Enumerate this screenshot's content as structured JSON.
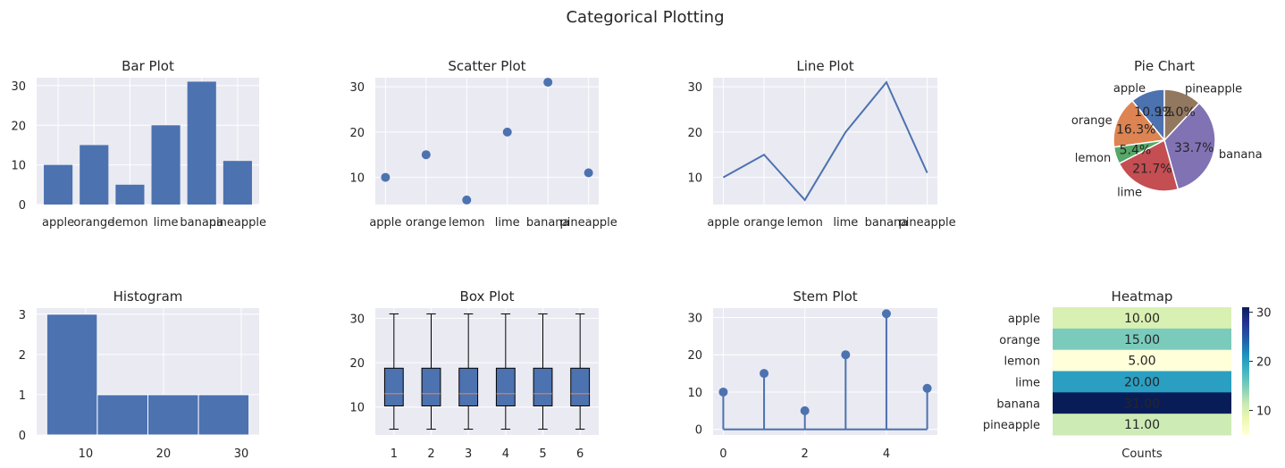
{
  "figure": {
    "suptitle": "Categorical Plotting"
  },
  "colors": {
    "axes_bg": "#eaeaf2",
    "grid": "#ffffff",
    "primary": "#4c72b0",
    "median": "#dd8452",
    "pie": [
      "#4c72b0",
      "#dd8452",
      "#55a868",
      "#c44e52",
      "#8172b3",
      "#937860"
    ],
    "heatmap_low": "#ffffd9",
    "heatmap_high": "#081d58"
  },
  "chart_data": [
    {
      "type": "bar",
      "title": "Bar Plot",
      "categories": [
        "apple",
        "orange",
        "lemon",
        "lime",
        "banana",
        "pineapple"
      ],
      "values": [
        10,
        15,
        5,
        20,
        31,
        11
      ],
      "ylim": [
        0,
        32
      ],
      "yticks": [
        0,
        10,
        20,
        30
      ],
      "grid": true
    },
    {
      "type": "scatter",
      "title": "Scatter Plot",
      "categories": [
        "apple",
        "orange",
        "lemon",
        "lime",
        "banana",
        "pineapple"
      ],
      "values": [
        10,
        15,
        5,
        20,
        31,
        11
      ],
      "ylim": [
        4,
        32
      ],
      "yticks": [
        10,
        20,
        30
      ],
      "grid": true
    },
    {
      "type": "line",
      "title": "Line Plot",
      "categories": [
        "apple",
        "orange",
        "lemon",
        "lime",
        "banana",
        "pineapple"
      ],
      "values": [
        10,
        15,
        5,
        20,
        31,
        11
      ],
      "ylim": [
        4,
        32
      ],
      "yticks": [
        10,
        20,
        30
      ],
      "grid": true
    },
    {
      "type": "pie",
      "title": "Pie Chart",
      "labels": [
        "apple",
        "orange",
        "lemon",
        "lime",
        "banana",
        "pineapple"
      ],
      "values": [
        10,
        15,
        5,
        20,
        31,
        11
      ],
      "percent_labels": [
        "10.9%",
        "16.3%",
        "5.4%",
        "21.7%",
        "33.7%",
        "12.0%"
      ]
    },
    {
      "type": "histogram",
      "title": "Histogram",
      "bin_edges": [
        5,
        11.5,
        18,
        24.5,
        31
      ],
      "counts": [
        3,
        1,
        1,
        1
      ],
      "xlim": [
        3.7,
        32.3
      ],
      "xticks": [
        10,
        20,
        30
      ],
      "ylim": [
        0,
        3.15
      ],
      "yticks": [
        0,
        1,
        2,
        3
      ],
      "grid": true
    },
    {
      "type": "box",
      "title": "Box Plot",
      "categories": [
        "1",
        "2",
        "3",
        "4",
        "5",
        "6"
      ],
      "boxes": [
        {
          "whisker_low": 5,
          "q1": 10.25,
          "median": 13,
          "q3": 18.75,
          "whisker_high": 31
        },
        {
          "whisker_low": 5,
          "q1": 10.25,
          "median": 13,
          "q3": 18.75,
          "whisker_high": 31
        },
        {
          "whisker_low": 5,
          "q1": 10.25,
          "median": 13,
          "q3": 18.75,
          "whisker_high": 31
        },
        {
          "whisker_low": 5,
          "q1": 10.25,
          "median": 13,
          "q3": 18.75,
          "whisker_high": 31
        },
        {
          "whisker_low": 5,
          "q1": 10.25,
          "median": 13,
          "q3": 18.75,
          "whisker_high": 31
        },
        {
          "whisker_low": 5,
          "q1": 10.25,
          "median": 13,
          "q3": 18.75,
          "whisker_high": 31
        }
      ],
      "ylim": [
        3.7,
        32.3
      ],
      "yticks": [
        10,
        20,
        30
      ],
      "grid": true
    },
    {
      "type": "stem",
      "title": "Stem Plot",
      "x": [
        0,
        1,
        2,
        3,
        4,
        5
      ],
      "values": [
        10,
        15,
        5,
        20,
        31,
        11
      ],
      "xticks": [
        0,
        2,
        4
      ],
      "ylim": [
        -1.5,
        32.5
      ],
      "yticks": [
        0,
        10,
        20,
        30
      ],
      "grid": true
    },
    {
      "type": "heatmap",
      "title": "Heatmap",
      "rows": [
        "apple",
        "orange",
        "lemon",
        "lime",
        "banana",
        "pineapple"
      ],
      "columns": [
        "Counts"
      ],
      "values": [
        10,
        15,
        5,
        20,
        31,
        11
      ],
      "annotations": [
        "10.00",
        "15.00",
        "5.00",
        "20.00",
        "31.00",
        "11.00"
      ],
      "colorbar_ticks": [
        10,
        20,
        30
      ],
      "vmin": 5,
      "vmax": 31
    }
  ]
}
